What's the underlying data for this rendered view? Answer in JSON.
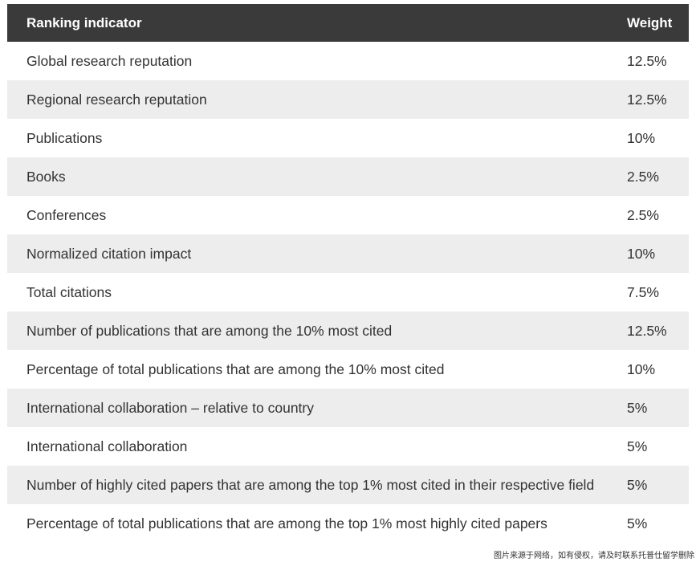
{
  "table": {
    "header": [
      "Ranking indicator",
      "Weight"
    ],
    "rows": [
      [
        "Global research reputation",
        "12.5%"
      ],
      [
        "Regional research reputation",
        "12.5%"
      ],
      [
        "Publications",
        "10%"
      ],
      [
        "Books",
        "2.5%"
      ],
      [
        "Conferences",
        "2.5%"
      ],
      [
        "Normalized citation impact",
        "10%"
      ],
      [
        "Total citations",
        "7.5%"
      ],
      [
        "Number of publications that are among the 10% most cited",
        "12.5%"
      ],
      [
        "Percentage of total publications that are among the 10% most cited",
        "10%"
      ],
      [
        "International collaboration – relative to country",
        "5%"
      ],
      [
        "International collaboration",
        "5%"
      ],
      [
        "Number of highly cited papers that are among the top 1% most cited in their respective field",
        "5%"
      ],
      [
        "Percentage of total publications that are among the top 1% most highly cited papers",
        "5%"
      ]
    ]
  },
  "watermark": "图片来源于网络，如有侵权，请及时联系托普仕留学删除"
}
